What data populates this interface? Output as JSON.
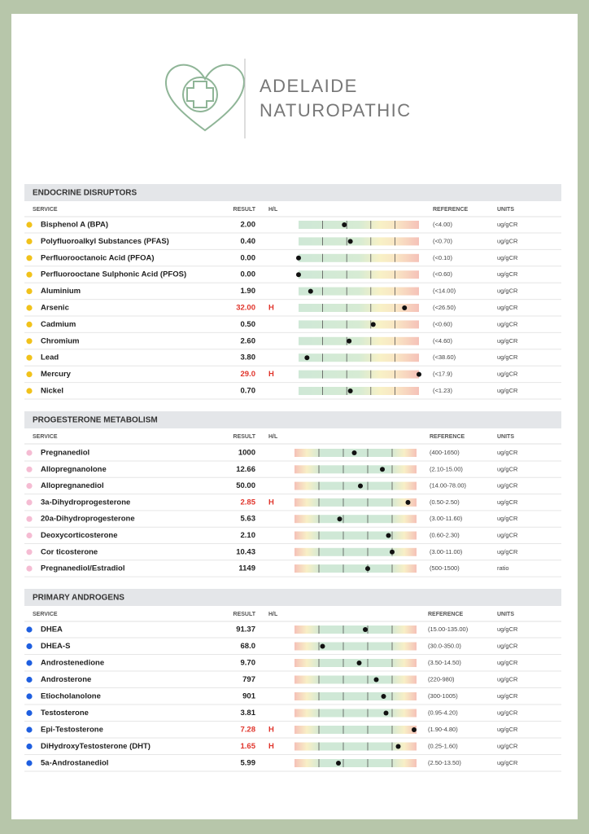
{
  "header": {
    "brand_line1": "ADELAIDE",
    "brand_line2": "NATUROPATHIC"
  },
  "sections": [
    {
      "title": "ENDOCRINE DISRUPTORS",
      "columns": [
        "SERVICE",
        "RESULT",
        "H/L",
        "REFERENCE",
        "UNITS"
      ],
      "rows": [
        {
          "service": "Bisphenol A (BPA)",
          "result": "2.00",
          "reference": "(<4.00)",
          "units": "ug/gCR"
        },
        {
          "service": "Polyfluoroalkyl Substances (PFAS)",
          "result": "0.40",
          "reference": "(<0.70)",
          "units": "ug/gCR"
        },
        {
          "service": "Perfluorooctanoic Acid (PFOA)",
          "result": "0.00",
          "reference": "(<0.10)",
          "units": "ug/gCR"
        },
        {
          "service": "Perfluorooctane Sulphonic Acid (PFOS)",
          "result": "0.00",
          "reference": "(<0.60)",
          "units": "ug/gCR"
        },
        {
          "service": "Aluminium",
          "result": "1.90",
          "reference": "(<14.00)",
          "units": "ug/gCR"
        },
        {
          "service": "Arsenic",
          "result": "32.00",
          "flag": "H",
          "reference": "(<26.50)",
          "units": "ug/gCR"
        },
        {
          "service": "Cadmium",
          "result": "0.50",
          "reference": "(<0.60)",
          "units": "ug/gCR"
        },
        {
          "service": "Chromium",
          "result": "2.60",
          "reference": "(<4.60)",
          "units": "ug/gCR"
        },
        {
          "service": "Lead",
          "result": "3.80",
          "reference": "(<38.60)",
          "units": "ug/gCR"
        },
        {
          "service": "Mercury",
          "result": "29.0",
          "flag": "H",
          "reference": "(<17.9)",
          "units": "ug/gCR"
        },
        {
          "service": "Nickel",
          "result": "0.70",
          "reference": "(<1.23)",
          "units": "ug/gCR"
        }
      ]
    },
    {
      "title": "PROGESTERONE METABOLISM",
      "columns": [
        "SERVICE",
        "RESULT",
        "H/L",
        "REFERENCE",
        "UNITS"
      ],
      "rows": [
        {
          "service": "Pregnanediol",
          "result": "1000",
          "reference": "(400-1650)",
          "units": "ug/gCR"
        },
        {
          "service": "Allopregnanolone",
          "result": "12.66",
          "reference": "(2.10-15.00)",
          "units": "ug/gCR"
        },
        {
          "service": "Allopregnanediol",
          "result": "50.00",
          "reference": "(14.00-78.00)",
          "units": "ug/gCR"
        },
        {
          "service": "3a-Dihydroprogesterone",
          "result": "2.85",
          "flag": "H",
          "reference": "(0.50-2.50)",
          "units": "ug/gCR"
        },
        {
          "service": "20a-Dihydroprogesterone",
          "result": "5.63",
          "reference": "(3.00-11.60)",
          "units": "ug/gCR"
        },
        {
          "service": "Deoxycorticosterone",
          "result": "2.10",
          "reference": "(0.60-2.30)",
          "units": "ug/gCR"
        },
        {
          "service": "Cor ticosterone",
          "result": "10.43",
          "reference": "(3.00-11.00)",
          "units": "ug/gCR"
        },
        {
          "service": "Pregnanediol/Estradiol",
          "result": "1149",
          "reference": "(500-1500)",
          "units": "ratio"
        }
      ]
    },
    {
      "title": "PRIMARY ANDROGENS",
      "columns": [
        "SERVICE",
        "RESULT",
        "H/L",
        "REFERENCE",
        "UNITS"
      ],
      "rows": [
        {
          "service": "DHEA",
          "result": "91.37",
          "reference": "(15.00-135.00)",
          "units": "ug/gCR"
        },
        {
          "service": "DHEA-S",
          "result": "68.0",
          "reference": "(30.0-350.0)",
          "units": "ug/gCR"
        },
        {
          "service": "Androstenedione",
          "result": "9.70",
          "reference": "(3.50-14.50)",
          "units": "ug/gCR"
        },
        {
          "service": "Androsterone",
          "result": "797",
          "reference": "(220-980)",
          "units": "ug/gCR"
        },
        {
          "service": "Etiocholanolone",
          "result": "901",
          "reference": "(300-1005)",
          "units": "ug/gCR"
        },
        {
          "service": "Testosterone",
          "result": "3.81",
          "reference": "(0.95-4.20)",
          "units": "ug/gCR"
        },
        {
          "service": "Epi-Testosterone",
          "result": "7.28",
          "flag": "H",
          "reference": "(1.90-4.80)",
          "units": "ug/gCR"
        },
        {
          "service": "DiHydroxyTestosterone (DHT)",
          "result": "1.65",
          "flag": "H",
          "reference": "(0.25-1.60)",
          "units": "ug/gCR"
        },
        {
          "service": "5a-Androstanediol",
          "result": "5.99",
          "reference": "(2.50-13.50)",
          "units": "ug/gCR"
        }
      ]
    }
  ]
}
